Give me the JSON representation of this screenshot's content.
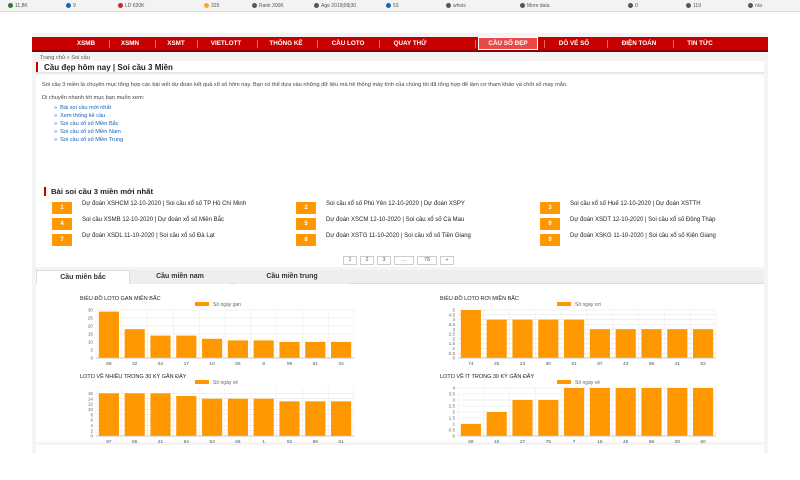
{
  "toolbar": {
    "items": [
      {
        "label": "11,8K",
        "icon": "globe-icon",
        "color": "#2e7d32"
      },
      {
        "label": "9",
        "icon": "link-icon",
        "color": "#1565c0"
      },
      {
        "label": "LD 630K",
        "icon": "link-icon",
        "color": "#c62828"
      },
      {
        "label": "329",
        "icon": "index-icon",
        "color": "#f9a825"
      },
      {
        "label": "Rank 300K",
        "icon": "rank-icon",
        "color": "#555555"
      },
      {
        "label": "Age 2019|09|30",
        "icon": "age-icon",
        "color": "#555555"
      },
      {
        "label": "53",
        "icon": "facebook-icon",
        "color": "#1565c0"
      },
      {
        "label": "whois",
        "icon": "whois-icon",
        "color": "#555555"
      },
      {
        "label": "More data",
        "icon": "chevron-down-icon",
        "color": "#555555"
      },
      {
        "label": "0",
        "icon": "counter-icon",
        "color": "#555555"
      },
      {
        "label": "119",
        "icon": "counter-icon",
        "color": "#555555"
      },
      {
        "label": "n/a",
        "icon": "counter-icon",
        "color": "#555555"
      }
    ]
  },
  "nav": {
    "items": [
      "XSMB",
      "XSMN",
      "XSMT",
      "VIETLOTT",
      "THỐNG KÊ",
      "CẦU LOTO",
      "QUAY THỬ",
      "CẦU SỐ ĐẸP",
      "DÒ VÉ SỐ",
      "ĐIỆN TOÁN",
      "TIN TỨC"
    ],
    "active": "CẦU SỐ ĐẸP"
  },
  "breadcrumb": {
    "home": "Trang chủ",
    "sep": "»",
    "current": "Soi cầu"
  },
  "page_title": "Cầu đẹp hôm nay | Soi cầu 3 Miền",
  "intro": {
    "paragraph": "Soi cầu 3 miền là chuyên mục tổng hợp các bài viết dự đoán kết quả xổ số hôm nay. Bạn có thể dựa vào những dữ liệu mà hệ thống máy tính của chúng tôi đã tổng hợp để làm cơ tham khảo và chốt số may mắn.",
    "move_label": "Di chuyển nhanh tới mục bạn muốn xem:",
    "links": [
      "Bài soi cầu mới nhất",
      "Xem thống kê cầu",
      "Soi cầu xổ số Miền Bắc",
      "Soi cầu xổ số Miền Nam",
      "Soi cầu xổ số Miền Trung"
    ]
  },
  "latest": {
    "title": "Bài soi cầu 3 miền mới nhất",
    "items": [
      {
        "num": "1",
        "text": "Dự đoán XSHCM 12-10-2020 | Soi cầu xổ số TP Hồ Chí Minh"
      },
      {
        "num": "2",
        "text": "Soi cầu xổ số Phú Yên 12-10-2020 | Dự đoán XSPY"
      },
      {
        "num": "3",
        "text": "Soi cầu xổ số Huế 12-10-2020 | Dự đoán XSTTH"
      },
      {
        "num": "4",
        "text": "Soi cầu XSMB 12-10-2020 | Dự đoán xổ số Miền Bắc"
      },
      {
        "num": "5",
        "text": "Dự đoán XSCM 12-10-2020 | Soi cầu xổ số Cà Mau"
      },
      {
        "num": "6",
        "text": "Dự đoán XSDT 12-10-2020 | Soi cầu xổ số Đồng Tháp"
      },
      {
        "num": "7",
        "text": "Dự đoán XSDL 11-10-2020 | Soi cầu xổ số Đà Lạt"
      },
      {
        "num": "8",
        "text": "Dự đoán XSTG 11-10-2020 | Soi cầu xổ số Tiền Giang"
      },
      {
        "num": "9",
        "text": "Dự đoán XSKG 11-10-2020 | Soi cầu xổ số Kiên Giang"
      }
    ],
    "pagination": [
      "1",
      "2",
      "3",
      "...",
      "78",
      "»"
    ]
  },
  "tabs": [
    "Cầu miền bắc",
    "Cầu miền nam",
    "Cầu miền trung"
  ],
  "chart_data": [
    {
      "type": "bar",
      "title": "BIỂU ĐỒ LOTO GAN MIỀN BẮC",
      "legend": "Số ngày gan",
      "categories": [
        "69",
        "32",
        "64",
        "17",
        "10",
        "68",
        "8",
        "99",
        "61",
        "34"
      ],
      "values": [
        29,
        18,
        14,
        14,
        12,
        11,
        11,
        10,
        10,
        10
      ],
      "yticks": [
        0,
        5,
        10,
        15,
        20,
        25,
        30
      ],
      "ylim": [
        0,
        30
      ],
      "color": "#ff9800"
    },
    {
      "type": "bar",
      "title": "BIỂU ĐỒ LOTO RƠI MIỀN BẮC",
      "legend": "Số ngày rơi",
      "categories": [
        "74",
        "25",
        "23",
        "30",
        "81",
        "87",
        "43",
        "96",
        "41",
        "82"
      ],
      "values": [
        5,
        4,
        4,
        4,
        4,
        3,
        3,
        3,
        3,
        3
      ],
      "yticks": [
        0,
        0.5,
        1.0,
        1.5,
        2.0,
        2.5,
        3.0,
        3.5,
        4.0,
        4.5,
        5.0
      ],
      "ylim": [
        0,
        5
      ],
      "color": "#ff9800"
    },
    {
      "type": "bar",
      "title": "LOTO VỀ NHIỀU TRONG 30 KỲ GẦN ĐÂY",
      "legend": "Số ngày về",
      "categories": [
        "97",
        "86",
        "21",
        "94",
        "93",
        "66",
        "1",
        "92",
        "89",
        "61"
      ],
      "values": [
        16,
        16,
        16,
        15,
        14,
        14,
        14,
        13,
        13,
        13
      ],
      "yticks": [
        0,
        2,
        4,
        6,
        8,
        10,
        12,
        14,
        16
      ],
      "ylim": [
        0,
        18
      ],
      "color": "#ff9800"
    },
    {
      "type": "bar",
      "title": "LOTO VỀ ÍT TRONG 30 KỲ GẦN ĐÂY",
      "legend": "Số ngày về",
      "categories": [
        "59",
        "10",
        "27",
        "75",
        "7",
        "16",
        "46",
        "86",
        "28",
        "60"
      ],
      "values": [
        1,
        2,
        3,
        3,
        4,
        4,
        4,
        4,
        4,
        4
      ],
      "yticks": [
        0,
        0.5,
        1.0,
        1.5,
        2.0,
        2.5,
        3.0,
        3.5,
        4.0
      ],
      "ylim": [
        0,
        4
      ],
      "color": "#ff9800"
    }
  ]
}
